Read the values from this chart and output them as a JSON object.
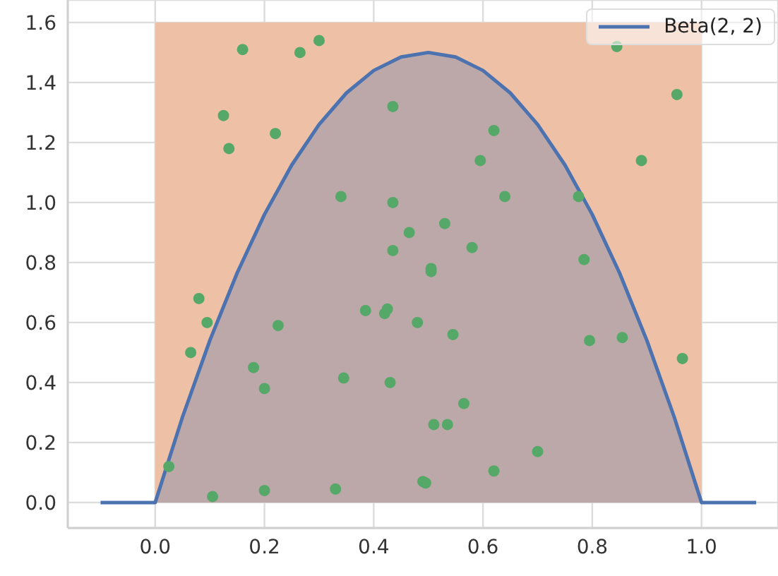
{
  "chart_data": {
    "type": "scatter",
    "xlim": [
      -0.16,
      1.14
    ],
    "ylim": [
      -0.085,
      1.675
    ],
    "xticks": [
      {
        "value": 0,
        "label": "0.0"
      },
      0.2,
      0.4,
      0.6,
      0.8,
      {
        "value": 1,
        "label": "1.0"
      }
    ],
    "yticks": [
      {
        "value": 0,
        "label": "0.0"
      },
      0.2,
      0.4,
      0.6,
      0.8,
      {
        "value": 1,
        "label": "1.0"
      },
      1.2,
      1.4,
      1.6
    ],
    "grid": true,
    "legend": "top right",
    "series": [
      {
        "type": "area",
        "color": "#eec0a6",
        "x": [
          0,
          1
        ],
        "values": [
          1.6,
          1.6
        ]
      },
      {
        "type": "area",
        "name": "Beta(2, 2)",
        "color": "#4c72b0",
        "x": [
          -0.1,
          0,
          0.05,
          0.1,
          0.15,
          0.2,
          0.25,
          0.3,
          0.35,
          0.4,
          0.45,
          0.5,
          0.55,
          0.6,
          0.65,
          0.7,
          0.75,
          0.8,
          0.85,
          0.9,
          0.95,
          1,
          1.1
        ],
        "values": [
          0,
          0,
          0.285,
          0.54,
          0.765,
          0.96,
          1.125,
          1.26,
          1.365,
          1.44,
          1.485,
          1.5,
          1.485,
          1.44,
          1.365,
          1.26,
          1.125,
          0.96,
          0.765,
          0.54,
          0.285,
          0,
          0
        ]
      },
      {
        "color": "#55a868",
        "marker": "circle",
        "x": [
          0.025,
          0.105,
          0.2,
          0.33,
          0.18,
          0.2,
          0.225,
          0.345,
          0.385,
          0.42,
          0.425,
          0.43,
          0.435,
          0.435,
          0.435,
          0.34,
          0.465,
          0.48,
          0.49,
          0.495,
          0.505,
          0.505,
          0.51,
          0.53,
          0.535,
          0.545,
          0.565,
          0.58,
          0.595,
          0.62,
          0.62,
          0.64,
          0.7,
          0.775,
          0.785,
          0.795,
          0.855
        ],
        "values": [
          0.12,
          0.02,
          0.04,
          0.045,
          0.45,
          0.38,
          0.59,
          0.415,
          0.64,
          0.63,
          0.645,
          0.4,
          0.84,
          1.0,
          1.32,
          1.02,
          0.9,
          0.6,
          0.07,
          0.065,
          0.78,
          0.77,
          0.26,
          0.93,
          0.26,
          0.56,
          0.33,
          0.85,
          1.14,
          1.24,
          0.105,
          1.02,
          0.17,
          1.02,
          0.81,
          0.54,
          0.55
        ]
      },
      {
        "color": "#55a868",
        "marker": "circle",
        "x": [
          0.16,
          0.265,
          0.3,
          0.125,
          0.135,
          0.22,
          0.08,
          0.095,
          0.065,
          0.845,
          0.955,
          0.89,
          0.965
        ],
        "values": [
          1.51,
          1.5,
          1.54,
          1.29,
          1.18,
          1.23,
          0.68,
          0.6,
          0.5,
          1.52,
          1.36,
          1.14,
          0.48
        ]
      }
    ]
  }
}
